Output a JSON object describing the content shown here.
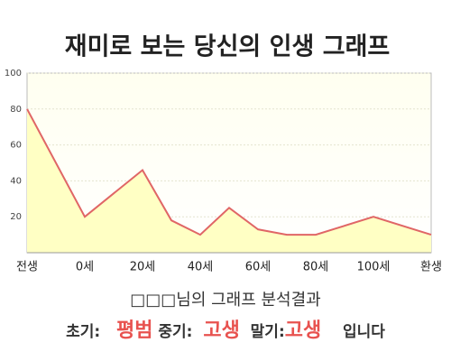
{
  "chart_data": {
    "type": "area",
    "title": "재미로 보는 당신의 인생 그래프",
    "x": [
      -20,
      0,
      20,
      30,
      40,
      50,
      60,
      70,
      80,
      100,
      120
    ],
    "values": [
      80,
      20,
      46,
      18,
      10,
      25,
      13,
      10,
      10,
      20,
      10
    ],
    "color": "#e06666",
    "fill": "#ffffc4",
    "xlim": [
      -20,
      120
    ],
    "xticks": [
      {
        "value": -20,
        "label": "전생"
      },
      {
        "value": 0,
        "label": "0세"
      },
      {
        "value": 20,
        "label": "20세"
      },
      {
        "value": 40,
        "label": "40세"
      },
      {
        "value": 60,
        "label": "60세"
      },
      {
        "value": 80,
        "label": "80세"
      },
      {
        "value": 100,
        "label": "100세"
      },
      {
        "value": 120,
        "label": "환생"
      }
    ],
    "ylim": [
      0,
      100
    ],
    "yticks": [
      20,
      40,
      60,
      80,
      100
    ],
    "grid": true
  },
  "result": {
    "heading": "□□□님의 그래프 분석결과",
    "early_label": "초기:",
    "early": "평범",
    "middle_label": "중기:",
    "middle": "고생",
    "late_label": "말기:",
    "late": "고생",
    "ending": "입니다"
  }
}
